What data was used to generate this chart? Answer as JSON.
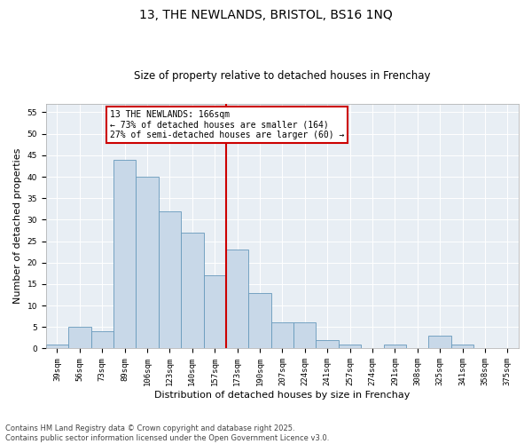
{
  "title1": "13, THE NEWLANDS, BRISTOL, BS16 1NQ",
  "title2": "Size of property relative to detached houses in Frenchay",
  "xlabel": "Distribution of detached houses by size in Frenchay",
  "ylabel": "Number of detached properties",
  "bar_labels": [
    "39sqm",
    "56sqm",
    "73sqm",
    "89sqm",
    "106sqm",
    "123sqm",
    "140sqm",
    "157sqm",
    "173sqm",
    "190sqm",
    "207sqm",
    "224sqm",
    "241sqm",
    "257sqm",
    "274sqm",
    "291sqm",
    "308sqm",
    "325sqm",
    "341sqm",
    "358sqm",
    "375sqm"
  ],
  "bar_values": [
    1,
    5,
    4,
    44,
    40,
    32,
    27,
    17,
    23,
    13,
    6,
    6,
    2,
    1,
    0,
    1,
    0,
    3,
    1,
    0,
    0
  ],
  "bar_color": "#c8d8e8",
  "bar_edge_color": "#6699bb",
  "vline_color": "#cc0000",
  "legend_text_line1": "13 THE NEWLANDS: 166sqm",
  "legend_text_line2": "← 73% of detached houses are smaller (164)",
  "legend_text_line3": "27% of semi-detached houses are larger (60) →",
  "legend_box_color": "#cc0000",
  "ylim": [
    0,
    57
  ],
  "yticks": [
    0,
    5,
    10,
    15,
    20,
    25,
    30,
    35,
    40,
    45,
    50,
    55
  ],
  "bg_color": "#e8eef4",
  "footer": "Contains HM Land Registry data © Crown copyright and database right 2025.\nContains public sector information licensed under the Open Government Licence v3.0.",
  "title_fontsize": 10,
  "subtitle_fontsize": 8.5,
  "axis_label_fontsize": 8,
  "tick_fontsize": 6.5,
  "legend_fontsize": 7,
  "footer_fontsize": 6
}
